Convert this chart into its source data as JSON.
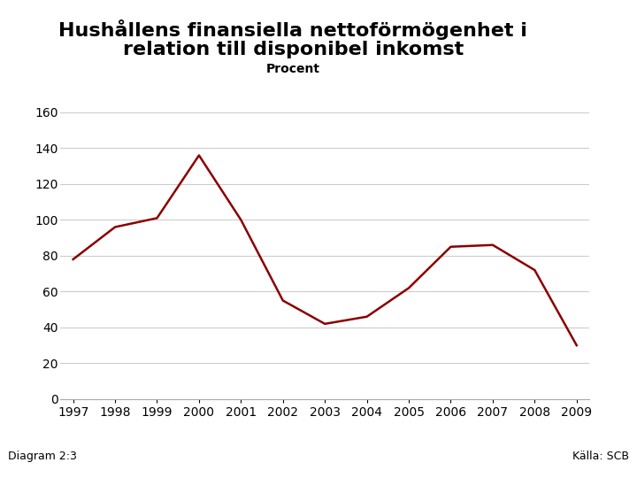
{
  "title_line1": "Hushållens finansiella nettoförmögenhet i",
  "title_line2": "relation till disponibel inkomst",
  "subtitle": "Procent",
  "years": [
    1997,
    1998,
    1999,
    2000,
    2001,
    2002,
    2003,
    2004,
    2005,
    2006,
    2007,
    2008,
    2009
  ],
  "values": [
    78,
    96,
    101,
    136,
    100,
    55,
    42,
    46,
    62,
    85,
    86,
    72,
    30
  ],
  "line_color": "#8B0000",
  "line_width": 1.8,
  "ylim": [
    0,
    160
  ],
  "yticks": [
    0,
    20,
    40,
    60,
    80,
    100,
    120,
    140,
    160
  ],
  "grid_color": "#cccccc",
  "bg_color": "#ffffff",
  "footer_bar_color": "#1f4e8c",
  "diagram_label": "Diagram 2:3",
  "source_label": "Källa: SCB",
  "title_fontsize": 16,
  "subtitle_fontsize": 10,
  "axis_fontsize": 10,
  "footer_fontsize": 9
}
